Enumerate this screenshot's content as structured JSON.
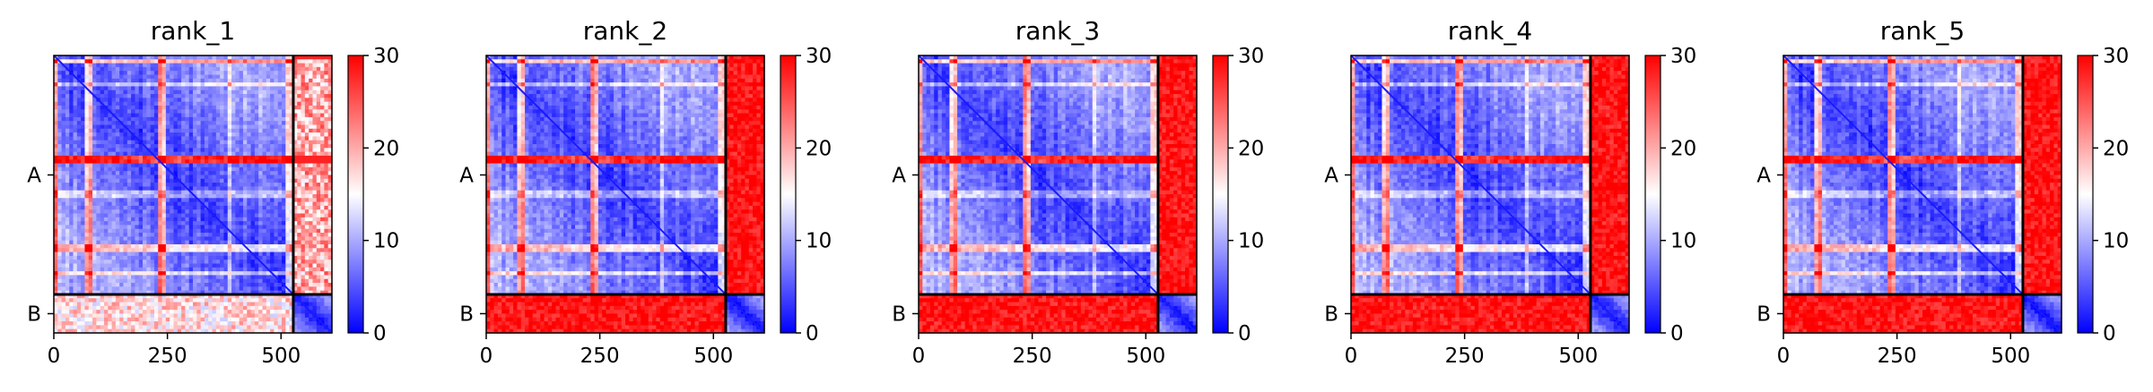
{
  "chart_data": {
    "type": "heatmap",
    "description_colormap": "bwr",
    "panels": [
      {
        "title": "rank_1",
        "inter_chain": "mixed"
      },
      {
        "title": "rank_2",
        "inter_chain": "high"
      },
      {
        "title": "rank_3",
        "inter_chain": "high"
      },
      {
        "title": "rank_4",
        "inter_chain": "high"
      },
      {
        "title": "rank_5",
        "inter_chain": "high"
      }
    ],
    "x_ticks": [
      0,
      250,
      500
    ],
    "xlim": [
      0,
      612
    ],
    "ylim": [
      612,
      0
    ],
    "chains": [
      {
        "name": "A",
        "start": 0,
        "end": 527
      },
      {
        "name": "B",
        "start": 527,
        "end": 612
      }
    ],
    "colorbar": {
      "min": 0,
      "max": 30,
      "ticks": [
        0,
        10,
        20,
        30
      ]
    },
    "colors": {
      "low": "#0000ff",
      "mid": "#ffffff",
      "high": "#ff0000"
    }
  }
}
